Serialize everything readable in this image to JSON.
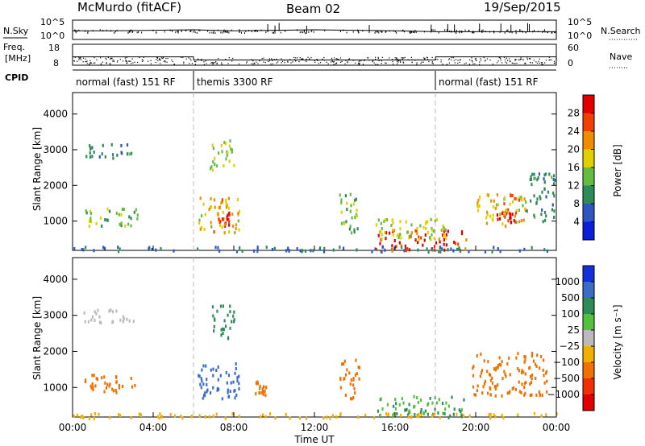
{
  "header": {
    "station": "McMurdo (fitACF)",
    "beam": "Beam 02",
    "date": "19/Sep/2015"
  },
  "info_panels": {
    "nsky_label": "N.Sky",
    "nsky_ticks": [
      "10^5",
      "10^0"
    ],
    "nsearch_label": "N.Search",
    "nsearch_ticks": [
      "10^5",
      "10^0"
    ],
    "freq_label": "Freq.",
    "freq_unit": "[MHz]",
    "freq_ticks": [
      "18",
      "8"
    ],
    "nave_label": "Nave",
    "nave_ticks": [
      "60",
      "0"
    ],
    "cpid_label": "CPID",
    "cpid_segments": [
      {
        "label": "normal (fast) 151 RF",
        "start_h": 0,
        "end_h": 6
      },
      {
        "label": "themis 3300 RF",
        "start_h": 6,
        "end_h": 18
      },
      {
        "label": "normal (fast) 151 RF",
        "start_h": 18,
        "end_h": 24
      }
    ],
    "nsky_trace": [
      [
        0,
        0.45
      ],
      [
        2,
        0.45
      ],
      [
        6,
        0.5
      ],
      [
        8,
        0.45
      ],
      [
        12,
        0.5
      ],
      [
        16,
        0.45
      ],
      [
        18,
        0.4
      ],
      [
        20,
        0.4
      ],
      [
        24,
        0.4
      ]
    ],
    "freq_trace": [
      [
        0,
        0.4
      ],
      [
        6,
        0.4
      ],
      [
        6.01,
        0.25
      ],
      [
        18,
        0.25
      ],
      [
        18.01,
        0.4
      ],
      [
        24,
        0.4
      ]
    ]
  },
  "chart_data": [
    {
      "type": "heatmap",
      "panel": "power",
      "ylabel": "Slant Range [km]",
      "yticks": [
        1000,
        2000,
        3000,
        4000
      ],
      "ylim": [
        180,
        4600
      ],
      "xlim": [
        0,
        24
      ],
      "colorbar": {
        "label": "Power [dB]",
        "ticks": [
          4,
          8,
          12,
          16,
          20,
          24,
          28
        ],
        "range": [
          0,
          32
        ],
        "colors": [
          "#0a1fd8",
          "#2f55c0",
          "#2e8b57",
          "#66bb44",
          "#e0d000",
          "#f08c00",
          "#f04000",
          "#e00000"
        ]
      },
      "regions": [
        {
          "t0": 0.5,
          "t1": 3.0,
          "r0": 2800,
          "r1": 3200,
          "value": 10
        },
        {
          "t0": 0.5,
          "t1": 3.2,
          "r0": 900,
          "r1": 1400,
          "value": 14
        },
        {
          "t0": 6.2,
          "t1": 8.3,
          "r0": 700,
          "r1": 1700,
          "value": 20
        },
        {
          "t0": 7.2,
          "t1": 7.8,
          "r0": 900,
          "r1": 1300,
          "value": 28
        },
        {
          "t0": 6.8,
          "t1": 8.0,
          "r0": 2400,
          "r1": 3300,
          "value": 16
        },
        {
          "t0": 13.2,
          "t1": 14.2,
          "r0": 700,
          "r1": 1800,
          "value": 14
        },
        {
          "t0": 15.0,
          "t1": 19.5,
          "r0": 200,
          "r1": 800,
          "value": 28
        },
        {
          "t0": 15.0,
          "t1": 18.5,
          "r0": 500,
          "r1": 1100,
          "value": 16
        },
        {
          "t0": 19.8,
          "t1": 22.5,
          "r0": 900,
          "r1": 1800,
          "value": 20
        },
        {
          "t0": 21.0,
          "t1": 22.0,
          "r0": 1000,
          "r1": 1300,
          "value": 28
        },
        {
          "t0": 22.5,
          "t1": 23.9,
          "r0": 1000,
          "r1": 2400,
          "value": 10
        },
        {
          "t0": 0.0,
          "t1": 24.0,
          "r0": 180,
          "r1": 320,
          "value": 8
        }
      ]
    },
    {
      "type": "heatmap",
      "panel": "velocity",
      "ylabel": "Slant Range [km]",
      "yticks": [
        1000,
        2000,
        3000,
        4000
      ],
      "ylim": [
        180,
        4600
      ],
      "xlim": [
        0,
        24
      ],
      "xticks": [
        "00:00",
        "04:00",
        "08:00",
        "12:00",
        "16:00",
        "20:00",
        "00:00"
      ],
      "xlabel": "Time UT",
      "colorbar": {
        "label": "Velocity [m s⁻¹]",
        "ticks": [
          "1000",
          "500",
          "100",
          "25",
          "−25",
          "−100",
          "−500",
          "−1000"
        ],
        "colors": [
          "#1530d8",
          "#3a6cc8",
          "#2e8b57",
          "#55c040",
          "#bbbbbb",
          "#f0b000",
          "#f07000",
          "#f03000",
          "#e00000"
        ]
      },
      "regions": [
        {
          "t0": 0.5,
          "t1": 3.0,
          "r0": 2800,
          "r1": 3200,
          "value": 20
        },
        {
          "t0": 0.5,
          "t1": 3.2,
          "r0": 900,
          "r1": 1400,
          "value": -200
        },
        {
          "t0": 6.2,
          "t1": 8.3,
          "r0": 700,
          "r1": 1700,
          "value": 700
        },
        {
          "t0": 6.8,
          "t1": 8.0,
          "r0": 2400,
          "r1": 3300,
          "value": 150
        },
        {
          "t0": 9.0,
          "t1": 9.6,
          "r0": 800,
          "r1": 1200,
          "value": -200
        },
        {
          "t0": 13.2,
          "t1": 14.2,
          "r0": 700,
          "r1": 1800,
          "value": -150
        },
        {
          "t0": 15.0,
          "t1": 19.5,
          "r0": 200,
          "r1": 800,
          "value": 100
        },
        {
          "t0": 19.8,
          "t1": 23.5,
          "r0": 800,
          "r1": 2000,
          "value": -300
        },
        {
          "t0": 0.0,
          "t1": 24.0,
          "r0": 180,
          "r1": 320,
          "value": -50
        }
      ]
    }
  ]
}
